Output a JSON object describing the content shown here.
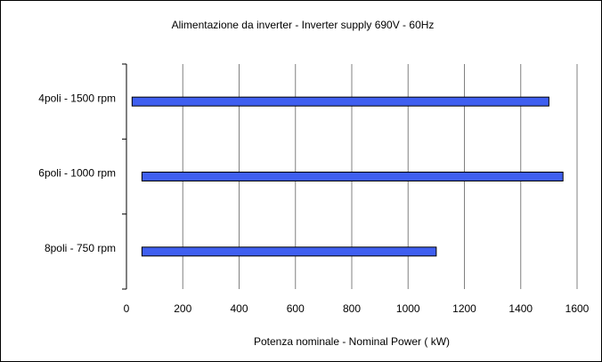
{
  "chart_data": {
    "type": "range-bar",
    "orientation": "horizontal",
    "title": "Alimentazione da inverter - Inverter supply  690V - 60Hz",
    "x_label": "Potenza nominale - Nominal Power ( kW)",
    "categories": [
      "4poli - 1500 rpm",
      "6poli - 1000 rpm",
      "8poli - 750 rpm"
    ],
    "low": [
      20,
      55,
      55
    ],
    "high": [
      1500,
      1550,
      1100
    ],
    "color": "#3f5ff0",
    "xlim": [
      0,
      1600
    ],
    "xticks": [
      0,
      200,
      400,
      600,
      800,
      1000,
      1200,
      1400,
      1600
    ],
    "grid": true
  }
}
